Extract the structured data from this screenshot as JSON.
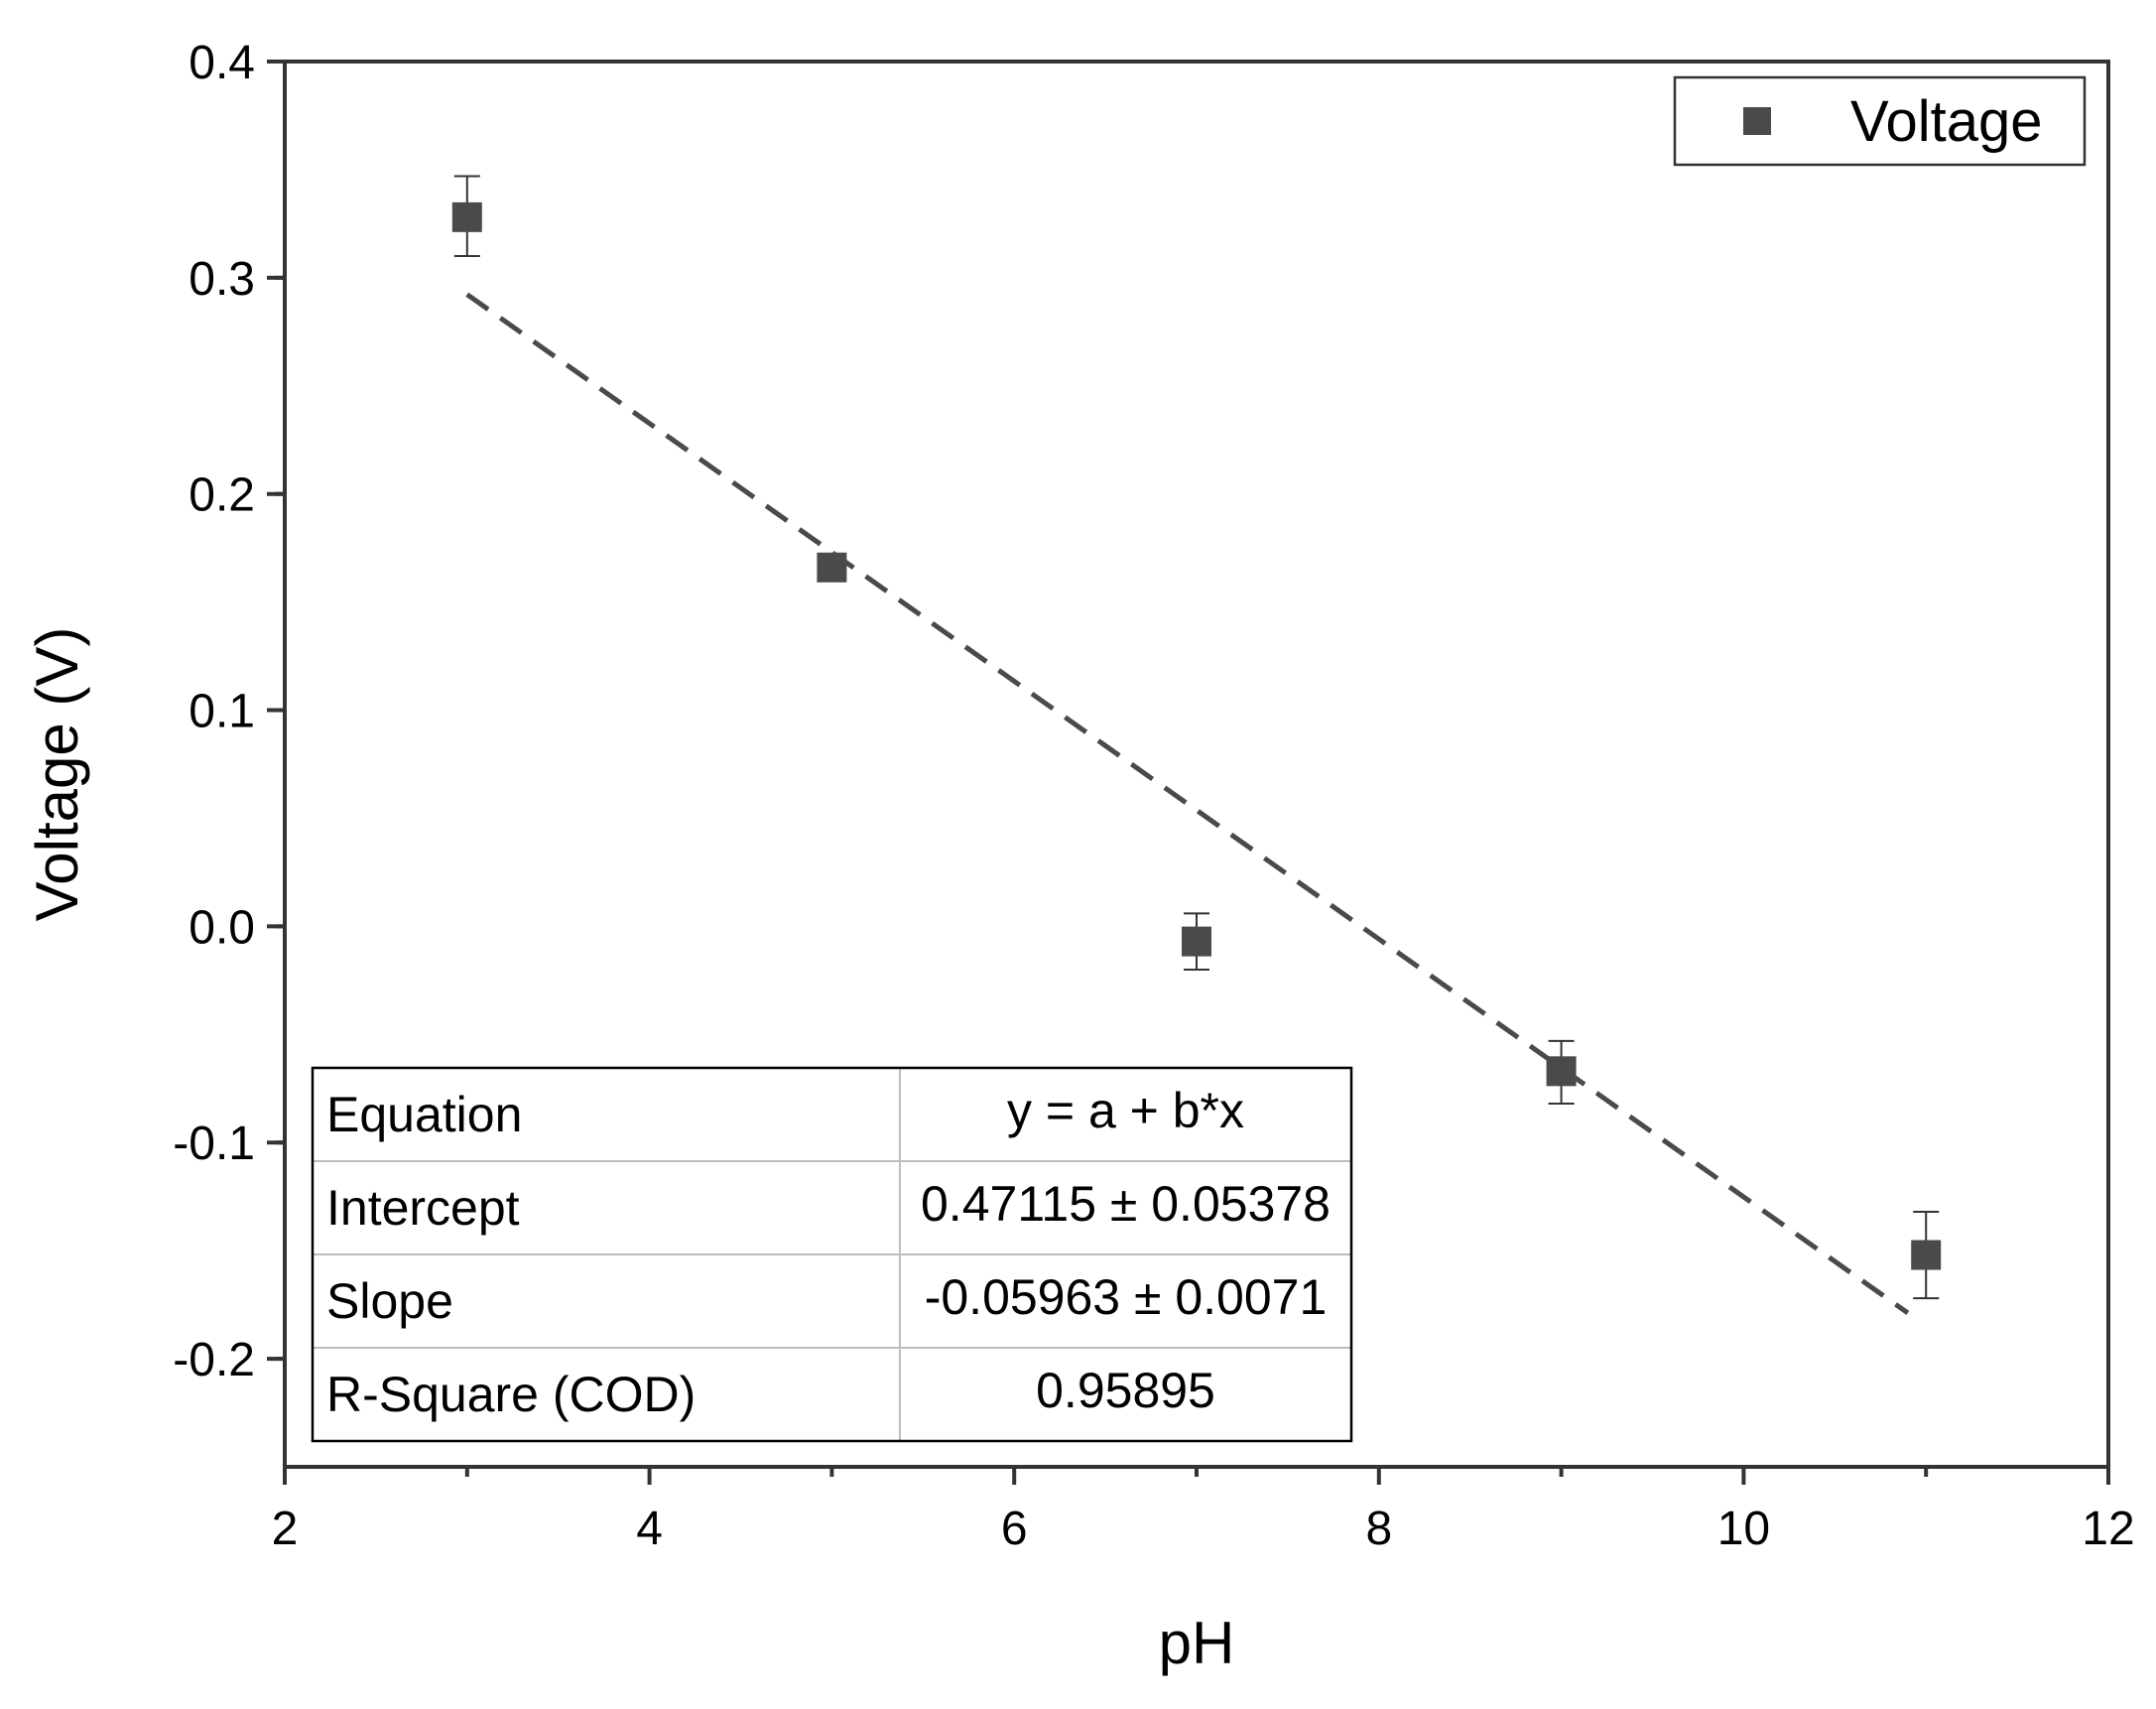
{
  "chart_data": {
    "type": "scatter",
    "xlabel": "pH",
    "ylabel": "Voltage (V)",
    "xlim": [
      2,
      12
    ],
    "ylim": [
      -0.25,
      0.4
    ],
    "x_ticks": [
      2,
      4,
      6,
      8,
      10,
      12
    ],
    "x_tick_labels": [
      "2",
      "4",
      "6",
      "8",
      "10",
      "12"
    ],
    "y_ticks": [
      0.4,
      0.3,
      0.2,
      0.1,
      0.0,
      -0.1,
      -0.2
    ],
    "y_tick_labels": [
      "0.4",
      "0.3",
      "0.2",
      "0.1",
      "0.0",
      "-0.1",
      "-0.2"
    ],
    "series": [
      {
        "name": "Voltage",
        "color": "#4a4a4a",
        "marker": "square",
        "x": [
          3,
          5,
          7,
          9,
          11
        ],
        "y": [
          0.328,
          0.166,
          -0.007,
          -0.067,
          -0.152
        ],
        "err_upper": [
          0.347,
          0.171,
          0.006,
          -0.053,
          -0.132
        ],
        "err_lower": [
          0.31,
          0.161,
          -0.02,
          -0.082,
          -0.172
        ]
      }
    ],
    "fit_line": {
      "style": "dashed",
      "color": "#4a4a4a",
      "x_range": [
        3,
        10.9
      ],
      "intercept": 0.47115,
      "slope": -0.05963
    },
    "legend": {
      "placement": "top-right",
      "entries": [
        "Voltage"
      ]
    },
    "fit_table": {
      "placement": "bottom-left",
      "rows": [
        [
          "Equation",
          "y = a + b*x"
        ],
        [
          "Intercept",
          "0.47115 ± 0.05378"
        ],
        [
          "Slope",
          "-0.05963 ± 0.0071"
        ],
        [
          "R-Square (COD)",
          "0.95895"
        ]
      ]
    }
  }
}
